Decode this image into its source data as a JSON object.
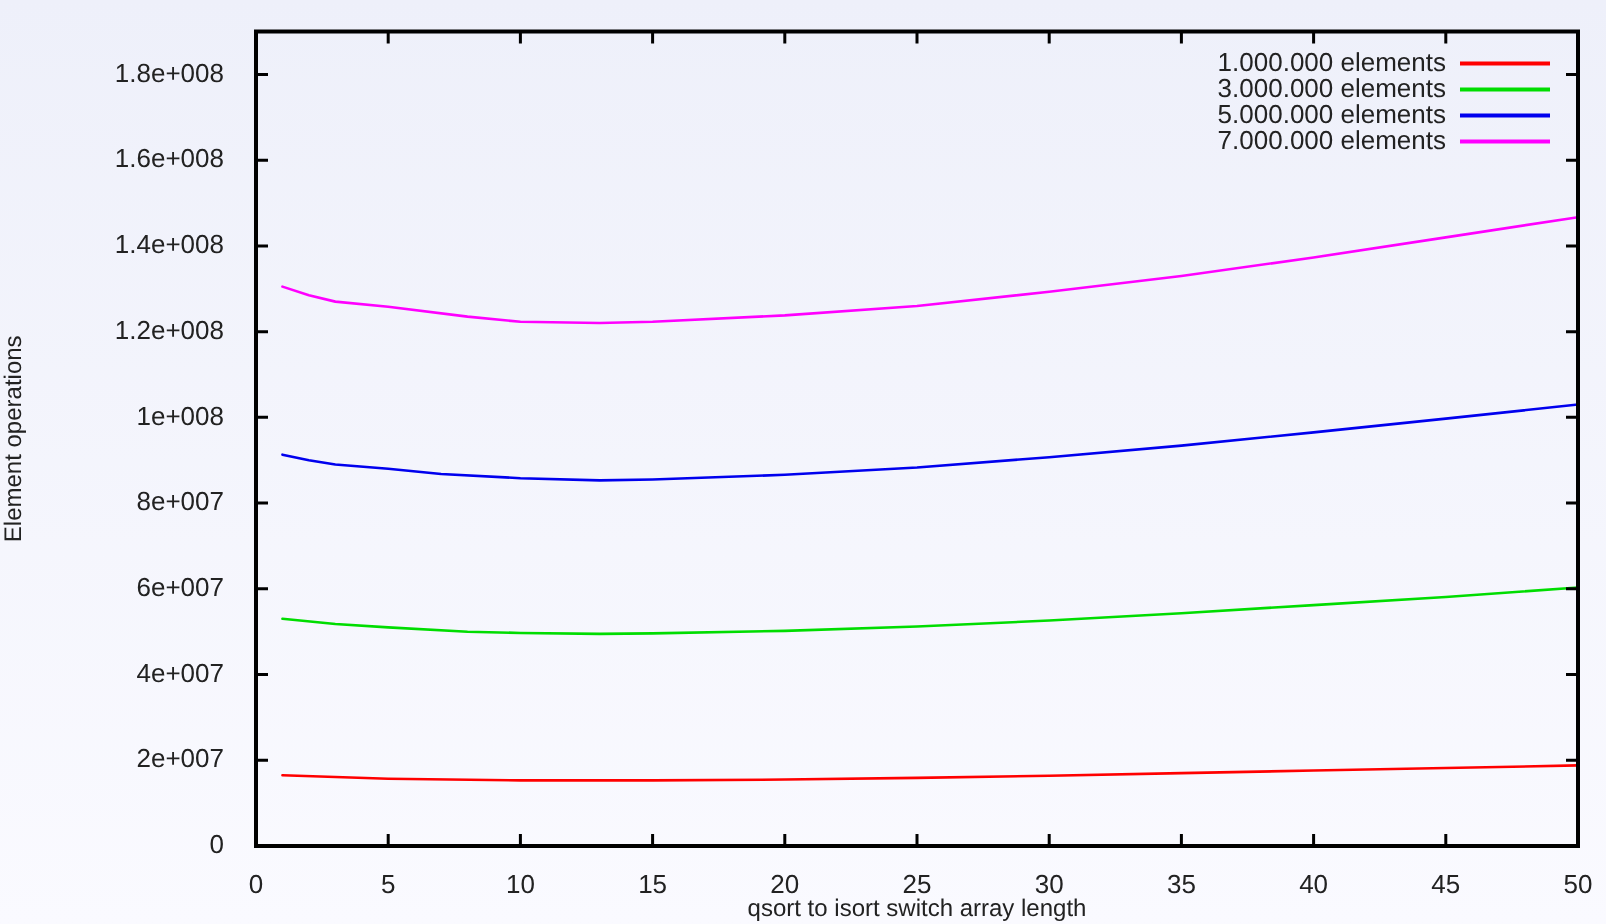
{
  "chart_data": {
    "type": "line",
    "xlabel": "qsort to isort switch array length",
    "ylabel": "Element operations",
    "xlim": [
      0,
      50
    ],
    "xticks": [
      0,
      5,
      10,
      15,
      20,
      25,
      30,
      35,
      40,
      45,
      50
    ],
    "ylim": [
      0,
      190000000
    ],
    "yticks": [
      {
        "value": 0,
        "label": "0"
      },
      {
        "value": 20000000,
        "label": "2e+007"
      },
      {
        "value": 40000000,
        "label": "4e+007"
      },
      {
        "value": 60000000,
        "label": "6e+007"
      },
      {
        "value": 80000000,
        "label": "8e+007"
      },
      {
        "value": 100000000,
        "label": "1e+008"
      },
      {
        "value": 120000000,
        "label": "1.2e+008"
      },
      {
        "value": 140000000,
        "label": "1.4e+008"
      },
      {
        "value": 160000000,
        "label": "1.6e+008"
      },
      {
        "value": 180000000,
        "label": "1.8e+008"
      }
    ],
    "grid": false,
    "legend": "top right",
    "marker": "none",
    "line_style": "solid",
    "series": [
      {
        "name": "1.000.000 elements",
        "color": "#ff0000",
        "x": [
          1,
          5,
          10,
          15,
          20,
          25,
          30,
          35,
          40,
          45,
          50
        ],
        "values": [
          16500000,
          15700000,
          15300000,
          15300000,
          15500000,
          15900000,
          16400000,
          17000000,
          17600000,
          18200000,
          18800000
        ]
      },
      {
        "name": "3.000.000 elements",
        "color": "#00dd00",
        "x": [
          1,
          3,
          5,
          8,
          10,
          13,
          15,
          20,
          25,
          30,
          35,
          40,
          45,
          50
        ],
        "values": [
          53000000,
          51800000,
          51000000,
          50000000,
          49700000,
          49500000,
          49600000,
          50200000,
          51200000,
          52600000,
          54300000,
          56200000,
          58100000,
          60300000
        ]
      },
      {
        "name": "5.000.000 elements",
        "color": "#0000ee",
        "x": [
          1,
          2,
          3,
          5,
          7,
          10,
          13,
          15,
          20,
          25,
          30,
          35,
          40,
          45,
          50
        ],
        "values": [
          91300000,
          90000000,
          89000000,
          88000000,
          86800000,
          85800000,
          85300000,
          85500000,
          86600000,
          88300000,
          90700000,
          93400000,
          96500000,
          99700000,
          103000000
        ]
      },
      {
        "name": "7.000.000 elements",
        "color": "#ff00ff",
        "x": [
          1,
          2,
          3,
          5,
          8,
          10,
          13,
          15,
          20,
          25,
          30,
          35,
          40,
          45,
          50
        ],
        "values": [
          130500000,
          128500000,
          127000000,
          125800000,
          123500000,
          122300000,
          122000000,
          122300000,
          123800000,
          126000000,
          129300000,
          133000000,
          137300000,
          142000000,
          146700000
        ]
      }
    ]
  }
}
